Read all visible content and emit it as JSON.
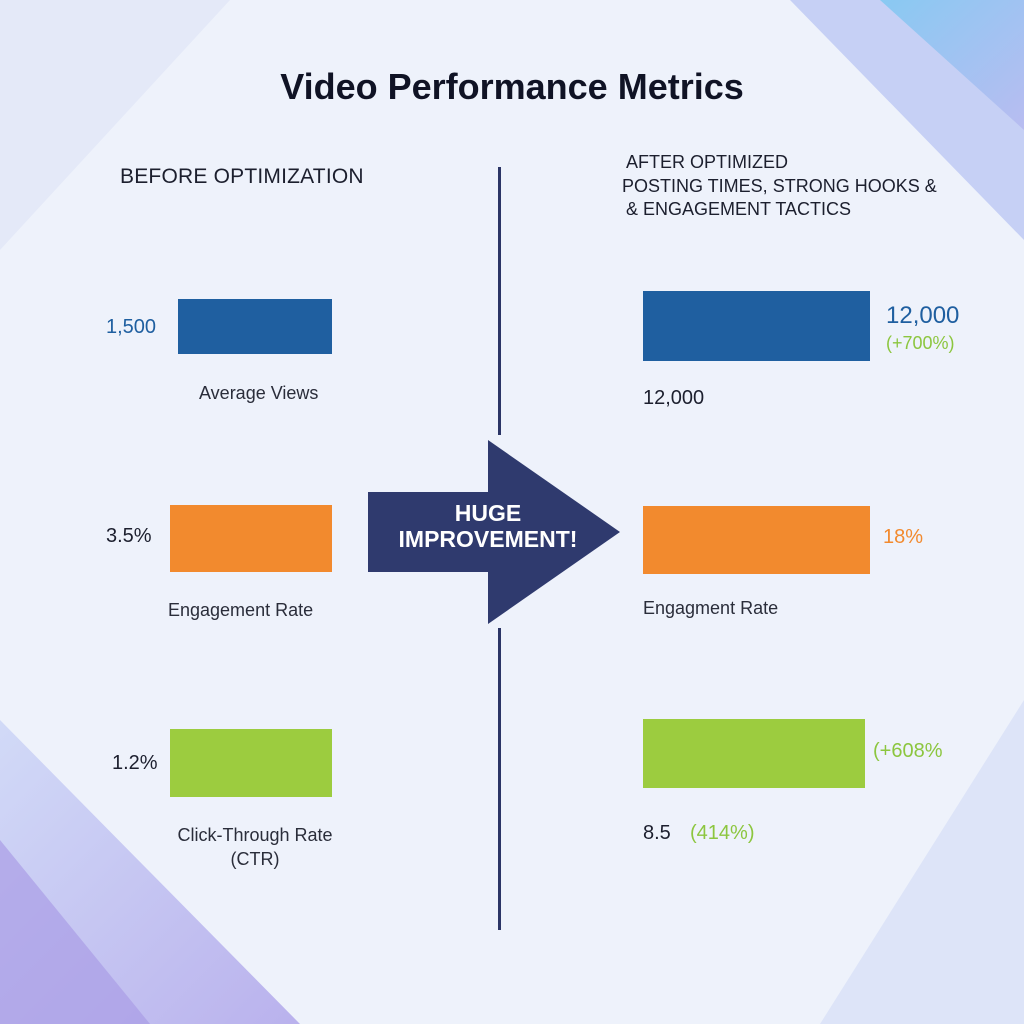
{
  "title": "Video Performance Metrics",
  "before": {
    "heading": "BEFORE OPTIMIZATION"
  },
  "after": {
    "heading_lines": [
      "AFTER OPTIMIZED",
      "POSTING TIMES, STRONG HOOKS &",
      "& ENGAGEMENT TACTICS"
    ]
  },
  "arrow": {
    "lines": [
      "HUGE",
      "IMPROVEMENT!"
    ],
    "color": "#2f3a6e"
  },
  "colors": {
    "views": "#1f5fa0",
    "engagement": "#f28a2e",
    "ctr": "#9ccc3f",
    "views_value_text": "#1f5fa0",
    "increase_text": "#8cc63f",
    "engagement_value_text": "#f28a2e"
  },
  "chart_data": {
    "type": "bar",
    "title": "Video Performance Metrics",
    "metrics": [
      {
        "key": "views",
        "before": {
          "value": 1500,
          "label_value": "1,500",
          "label": "Average Views"
        },
        "after": {
          "value": 12000,
          "label_value": "12,000",
          "change": "(+700%)",
          "sub_value": "12,000"
        }
      },
      {
        "key": "engagement",
        "before": {
          "value": 3.5,
          "label_value": "3.5%",
          "label": "Engagement Rate"
        },
        "after": {
          "value": 18,
          "label_value": "18%",
          "label": "Engagment Rate"
        }
      },
      {
        "key": "ctr",
        "before": {
          "value": 1.2,
          "label_value": "1.2%",
          "label_lines": [
            "Click-Through Rate",
            "(CTR)"
          ]
        },
        "after": {
          "value": 8.5,
          "change": "(+608%",
          "value_text": "8.5",
          "sub_change": "(414%)"
        }
      }
    ]
  }
}
